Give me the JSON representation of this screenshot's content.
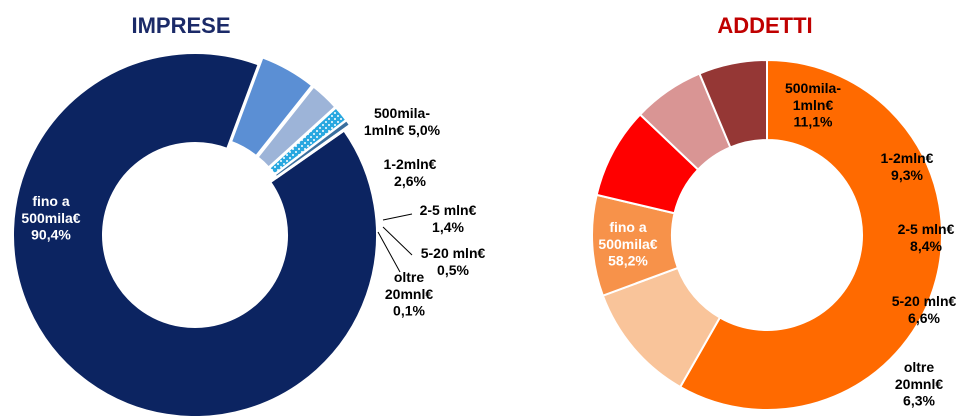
{
  "colors": {
    "title_left": "#1b2a68",
    "title_right": "#c00000"
  },
  "chart_data": [
    {
      "type": "pie",
      "variant": "donut",
      "title": "IMPRESE",
      "series": [
        {
          "name": "fino a 500mila€",
          "value": 90.4,
          "label_lines": [
            "fino a",
            "500mila€",
            "90,4%"
          ],
          "color": "#0c2461",
          "label_color": "#ffffff",
          "pattern": "none"
        },
        {
          "name": "500mila-1mln€",
          "value": 5.0,
          "label_lines": [
            "500mila-",
            "1mln€ 5,0%"
          ],
          "color": "#5b8fd4",
          "label_color": "#000000",
          "pattern": "none"
        },
        {
          "name": "1-2mln€",
          "value": 2.6,
          "label_lines": [
            "1-2mln€",
            "2,6%"
          ],
          "color": "#9db4d8",
          "label_color": "#000000",
          "pattern": "none"
        },
        {
          "name": "2-5 mln€",
          "value": 1.4,
          "label_lines": [
            "2-5 mln€",
            "1,4%"
          ],
          "color": "#29a8e0",
          "label_color": "#000000",
          "pattern": "dots"
        },
        {
          "name": "5-20 mln€",
          "value": 0.5,
          "label_lines": [
            "5-20 mln€",
            "0,5%"
          ],
          "color": "#3a6f9e",
          "label_color": "#000000",
          "pattern": "none"
        },
        {
          "name": "oltre 20mnl€",
          "value": 0.1,
          "label_lines": [
            "oltre",
            "20mnl€",
            "0,1%"
          ],
          "color": "#1b3f7a",
          "label_color": "#000000",
          "pattern": "none"
        }
      ]
    },
    {
      "type": "pie",
      "variant": "donut",
      "title": "ADDETTI",
      "series": [
        {
          "name": "fino a 500mila€",
          "value": 58.2,
          "label_lines": [
            "fino a",
            "500mila€",
            "58,2%"
          ],
          "color": "#ff6a00",
          "label_color": "#ffffff"
        },
        {
          "name": "500mila-1mln€",
          "value": 11.1,
          "label_lines": [
            "500mila-",
            "1mln€",
            "11,1%"
          ],
          "color": "#f9c49a",
          "label_color": "#000000"
        },
        {
          "name": "1-2mln€",
          "value": 9.3,
          "label_lines": [
            "1-2mln€",
            "9,3%"
          ],
          "color": "#f7924a",
          "label_color": "#000000"
        },
        {
          "name": "2-5 mln€",
          "value": 8.4,
          "label_lines": [
            "2-5 mln€",
            "8,4%"
          ],
          "color": "#ff0000",
          "label_color": "#000000"
        },
        {
          "name": "5-20 mln€",
          "value": 6.6,
          "label_lines": [
            "5-20 mln€",
            "6,6%"
          ],
          "color": "#d99594",
          "label_color": "#000000"
        },
        {
          "name": "oltre 20mnl€",
          "value": 6.3,
          "label_lines": [
            "oltre",
            "20mnl€",
            "6,3%"
          ],
          "color": "#953735",
          "label_color": "#000000"
        }
      ]
    }
  ]
}
